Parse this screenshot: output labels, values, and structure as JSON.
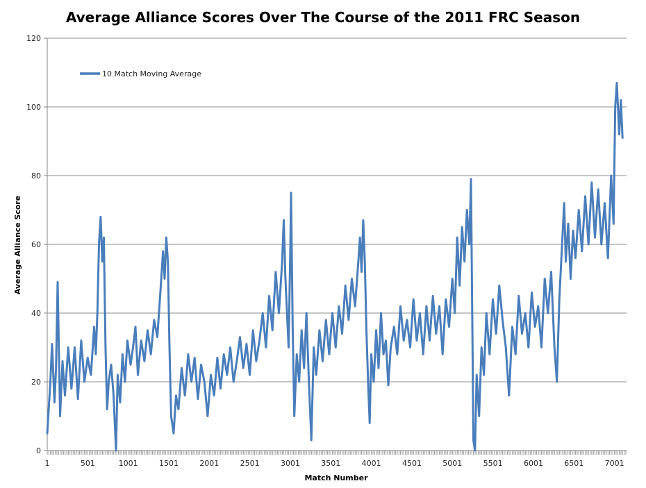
{
  "chart_data": {
    "type": "line",
    "title": "Average Alliance Scores Over The Course of the 2011 FRC Season",
    "xlabel": "Match Number",
    "ylabel": "Average Alliance Score",
    "xlim": [
      1,
      7150
    ],
    "ylim": [
      0,
      120
    ],
    "x_ticks": [
      "1",
      "501",
      "1001",
      "1501",
      "2001",
      "2501",
      "3001",
      "3501",
      "4001",
      "4501",
      "5001",
      "5501",
      "6001",
      "6501",
      "7001"
    ],
    "y_ticks": [
      "0",
      "20",
      "40",
      "60",
      "80",
      "100",
      "120"
    ],
    "grid": true,
    "legend_position": "top-left",
    "colors": {
      "series": "#4a7ebb",
      "grid": "#8c8c8c",
      "axis": "#868686"
    },
    "series": [
      {
        "name": "10 Match Moving Average",
        "points": [
          [
            1,
            5
          ],
          [
            40,
            20
          ],
          [
            60,
            31
          ],
          [
            90,
            14
          ],
          [
            110,
            24
          ],
          [
            130,
            49
          ],
          [
            160,
            10
          ],
          [
            190,
            26
          ],
          [
            220,
            16
          ],
          [
            260,
            30
          ],
          [
            300,
            18
          ],
          [
            340,
            30
          ],
          [
            380,
            15
          ],
          [
            420,
            32
          ],
          [
            460,
            20
          ],
          [
            500,
            27
          ],
          [
            540,
            22
          ],
          [
            580,
            36
          ],
          [
            600,
            28
          ],
          [
            620,
            40
          ],
          [
            640,
            60
          ],
          [
            660,
            68
          ],
          [
            680,
            55
          ],
          [
            700,
            62
          ],
          [
            720,
            30
          ],
          [
            740,
            12
          ],
          [
            760,
            20
          ],
          [
            790,
            25
          ],
          [
            820,
            16
          ],
          [
            850,
            0
          ],
          [
            870,
            22
          ],
          [
            900,
            14
          ],
          [
            930,
            28
          ],
          [
            960,
            20
          ],
          [
            990,
            32
          ],
          [
            1030,
            25
          ],
          [
            1060,
            30
          ],
          [
            1090,
            36
          ],
          [
            1120,
            22
          ],
          [
            1160,
            32
          ],
          [
            1200,
            26
          ],
          [
            1240,
            35
          ],
          [
            1280,
            28
          ],
          [
            1320,
            38
          ],
          [
            1360,
            33
          ],
          [
            1400,
            47
          ],
          [
            1430,
            58
          ],
          [
            1450,
            50
          ],
          [
            1470,
            62
          ],
          [
            1490,
            55
          ],
          [
            1510,
            30
          ],
          [
            1530,
            10
          ],
          [
            1560,
            5
          ],
          [
            1590,
            16
          ],
          [
            1620,
            12
          ],
          [
            1660,
            24
          ],
          [
            1700,
            16
          ],
          [
            1740,
            28
          ],
          [
            1780,
            20
          ],
          [
            1820,
            27
          ],
          [
            1860,
            15
          ],
          [
            1900,
            25
          ],
          [
            1940,
            20
          ],
          [
            1980,
            10
          ],
          [
            2020,
            22
          ],
          [
            2060,
            16
          ],
          [
            2100,
            27
          ],
          [
            2140,
            18
          ],
          [
            2180,
            28
          ],
          [
            2220,
            22
          ],
          [
            2260,
            30
          ],
          [
            2300,
            20
          ],
          [
            2340,
            26
          ],
          [
            2380,
            33
          ],
          [
            2420,
            24
          ],
          [
            2460,
            31
          ],
          [
            2500,
            22
          ],
          [
            2540,
            35
          ],
          [
            2580,
            26
          ],
          [
            2620,
            32
          ],
          [
            2660,
            40
          ],
          [
            2700,
            30
          ],
          [
            2740,
            45
          ],
          [
            2780,
            35
          ],
          [
            2820,
            52
          ],
          [
            2860,
            40
          ],
          [
            2900,
            55
          ],
          [
            2920,
            67
          ],
          [
            2940,
            50
          ],
          [
            2960,
            40
          ],
          [
            2980,
            30
          ],
          [
            3000,
            58
          ],
          [
            3010,
            75
          ],
          [
            3030,
            35
          ],
          [
            3050,
            10
          ],
          [
            3080,
            28
          ],
          [
            3110,
            20
          ],
          [
            3140,
            35
          ],
          [
            3170,
            24
          ],
          [
            3200,
            40
          ],
          [
            3230,
            20
          ],
          [
            3260,
            3
          ],
          [
            3290,
            30
          ],
          [
            3320,
            22
          ],
          [
            3360,
            35
          ],
          [
            3400,
            26
          ],
          [
            3440,
            38
          ],
          [
            3480,
            28
          ],
          [
            3520,
            40
          ],
          [
            3560,
            30
          ],
          [
            3600,
            42
          ],
          [
            3640,
            34
          ],
          [
            3680,
            48
          ],
          [
            3720,
            38
          ],
          [
            3760,
            50
          ],
          [
            3800,
            42
          ],
          [
            3840,
            55
          ],
          [
            3860,
            62
          ],
          [
            3880,
            52
          ],
          [
            3900,
            67
          ],
          [
            3920,
            55
          ],
          [
            3940,
            35
          ],
          [
            3960,
            20
          ],
          [
            3980,
            8
          ],
          [
            4000,
            28
          ],
          [
            4030,
            20
          ],
          [
            4060,
            35
          ],
          [
            4090,
            24
          ],
          [
            4120,
            40
          ],
          [
            4150,
            28
          ],
          [
            4180,
            32
          ],
          [
            4210,
            19
          ],
          [
            4240,
            30
          ],
          [
            4280,
            36
          ],
          [
            4320,
            28
          ],
          [
            4360,
            42
          ],
          [
            4400,
            32
          ],
          [
            4440,
            38
          ],
          [
            4480,
            30
          ],
          [
            4520,
            44
          ],
          [
            4560,
            32
          ],
          [
            4600,
            40
          ],
          [
            4640,
            28
          ],
          [
            4680,
            42
          ],
          [
            4720,
            32
          ],
          [
            4760,
            45
          ],
          [
            4800,
            34
          ],
          [
            4840,
            42
          ],
          [
            4880,
            28
          ],
          [
            4920,
            44
          ],
          [
            4960,
            36
          ],
          [
            5000,
            50
          ],
          [
            5030,
            40
          ],
          [
            5060,
            62
          ],
          [
            5090,
            48
          ],
          [
            5120,
            65
          ],
          [
            5150,
            55
          ],
          [
            5180,
            70
          ],
          [
            5210,
            60
          ],
          [
            5230,
            79
          ],
          [
            5250,
            30
          ],
          [
            5260,
            3
          ],
          [
            5280,
            0
          ],
          [
            5300,
            22
          ],
          [
            5330,
            10
          ],
          [
            5360,
            30
          ],
          [
            5390,
            22
          ],
          [
            5420,
            40
          ],
          [
            5460,
            28
          ],
          [
            5500,
            44
          ],
          [
            5540,
            34
          ],
          [
            5580,
            48
          ],
          [
            5620,
            38
          ],
          [
            5660,
            30
          ],
          [
            5700,
            16
          ],
          [
            5740,
            36
          ],
          [
            5780,
            28
          ],
          [
            5820,
            45
          ],
          [
            5860,
            34
          ],
          [
            5900,
            40
          ],
          [
            5940,
            30
          ],
          [
            5980,
            46
          ],
          [
            6020,
            36
          ],
          [
            6060,
            42
          ],
          [
            6100,
            30
          ],
          [
            6140,
            50
          ],
          [
            6180,
            40
          ],
          [
            6220,
            52
          ],
          [
            6260,
            30
          ],
          [
            6290,
            20
          ],
          [
            6320,
            44
          ],
          [
            6350,
            58
          ],
          [
            6380,
            72
          ],
          [
            6400,
            55
          ],
          [
            6430,
            66
          ],
          [
            6460,
            50
          ],
          [
            6490,
            64
          ],
          [
            6520,
            56
          ],
          [
            6560,
            70
          ],
          [
            6600,
            58
          ],
          [
            6640,
            74
          ],
          [
            6680,
            60
          ],
          [
            6720,
            78
          ],
          [
            6760,
            62
          ],
          [
            6800,
            76
          ],
          [
            6840,
            60
          ],
          [
            6880,
            72
          ],
          [
            6920,
            56
          ],
          [
            6960,
            80
          ],
          [
            6990,
            66
          ],
          [
            7010,
            100
          ],
          [
            7030,
            107
          ],
          [
            7060,
            92
          ],
          [
            7080,
            102
          ],
          [
            7100,
            91
          ]
        ]
      }
    ]
  }
}
